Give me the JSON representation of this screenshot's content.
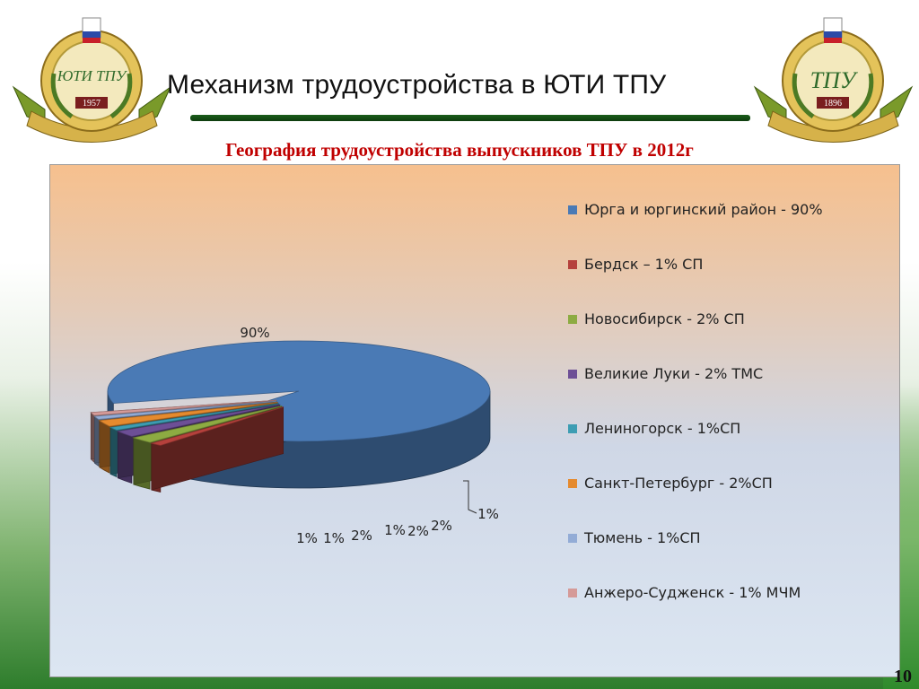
{
  "header": {
    "title": "Механизм трудоустройства в ЮТИ ТПУ",
    "subtitle": "География трудоустройства выпускников ТПУ в 2012г"
  },
  "emblems": {
    "left": {
      "monogram": "ЮТИ ТПУ",
      "year": "1957"
    },
    "right": {
      "monogram": "ТПУ",
      "year": "1896"
    }
  },
  "page_number": "10",
  "colors": {
    "title_bar": "#1b5e1b",
    "subtitle": "#c00000"
  },
  "chart_data": {
    "type": "pie",
    "title": "",
    "legend_position": "right",
    "three_d": true,
    "series": [
      {
        "name": "Юрга и юргинский район - 90%",
        "value": 90,
        "label": "90%",
        "color": "#4a7ab5"
      },
      {
        "name": "Бердск – 1% СП",
        "value": 1,
        "label": "1%",
        "color": "#b5413c"
      },
      {
        "name": "Новосибирск - 2% СП",
        "value": 2,
        "label": "2%",
        "color": "#8dab42"
      },
      {
        "name": "Великие Луки - 2% ТМС",
        "value": 2,
        "label": "2%",
        "color": "#6d4f96"
      },
      {
        "name": "Лениногорск - 1%СП",
        "value": 1,
        "label": "1%",
        "color": "#3d9db3"
      },
      {
        "name": "Санкт-Петербург - 2%СП",
        "value": 2,
        "label": "2%",
        "color": "#e58a2e"
      },
      {
        "name": "Тюмень - 1%СП",
        "value": 1,
        "label": "1%",
        "color": "#93acd6"
      },
      {
        "name": "Анжеро-Судженск - 1% МЧМ",
        "value": 1,
        "label": "1%",
        "color": "#d59a98"
      }
    ]
  }
}
